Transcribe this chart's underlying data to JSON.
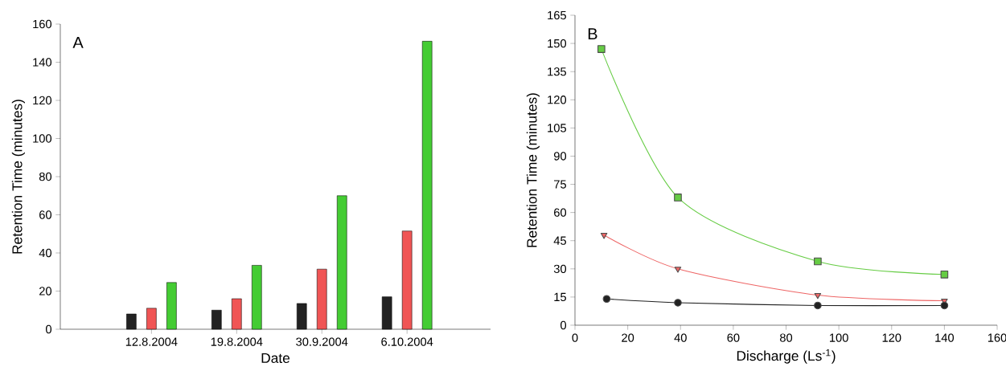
{
  "chart_data": [
    {
      "type": "bar",
      "annotations": [
        "A"
      ],
      "xlabel": "Date",
      "ylabel": "Retention Time (minutes)",
      "categories": [
        "12.8.2004",
        "19.8.2004",
        "30.9.2004",
        "6.10.2004"
      ],
      "series": [
        {
          "color": "#222222",
          "values": [
            8,
            10,
            13.5,
            17
          ]
        },
        {
          "color": "#f05555",
          "values": [
            11,
            16,
            31.5,
            51.5
          ]
        },
        {
          "color": "#44cc33",
          "values": [
            24.5,
            33.5,
            70,
            151
          ]
        }
      ],
      "ylim": [
        0,
        160
      ],
      "yticks": [
        0,
        20,
        40,
        60,
        80,
        100,
        120,
        140,
        160
      ]
    },
    {
      "type": "line",
      "annotations": [
        "B"
      ],
      "xlabel": "Discharge (Ls$^{-1}$)",
      "ylabel": "Retention Time (minutes)",
      "series": [
        {
          "color": "#66cc44",
          "marker": "square",
          "x": [
            10,
            39,
            92,
            140
          ],
          "values": [
            147,
            68,
            34,
            27
          ]
        },
        {
          "color": "#ee6666",
          "marker": "triangle",
          "x": [
            11,
            39,
            92,
            140
          ],
          "values": [
            48,
            30,
            16,
            13
          ]
        },
        {
          "color": "#222222",
          "marker": "circle",
          "x": [
            12,
            39,
            92,
            140
          ],
          "values": [
            14,
            12,
            10.5,
            10.5
          ]
        }
      ],
      "xlim": [
        0,
        160
      ],
      "xticks": [
        0,
        20,
        40,
        60,
        80,
        100,
        120,
        140,
        160
      ],
      "ylim": [
        0,
        165
      ],
      "yticks": [
        0,
        15,
        30,
        45,
        60,
        75,
        90,
        105,
        120,
        135,
        150,
        165
      ]
    }
  ]
}
